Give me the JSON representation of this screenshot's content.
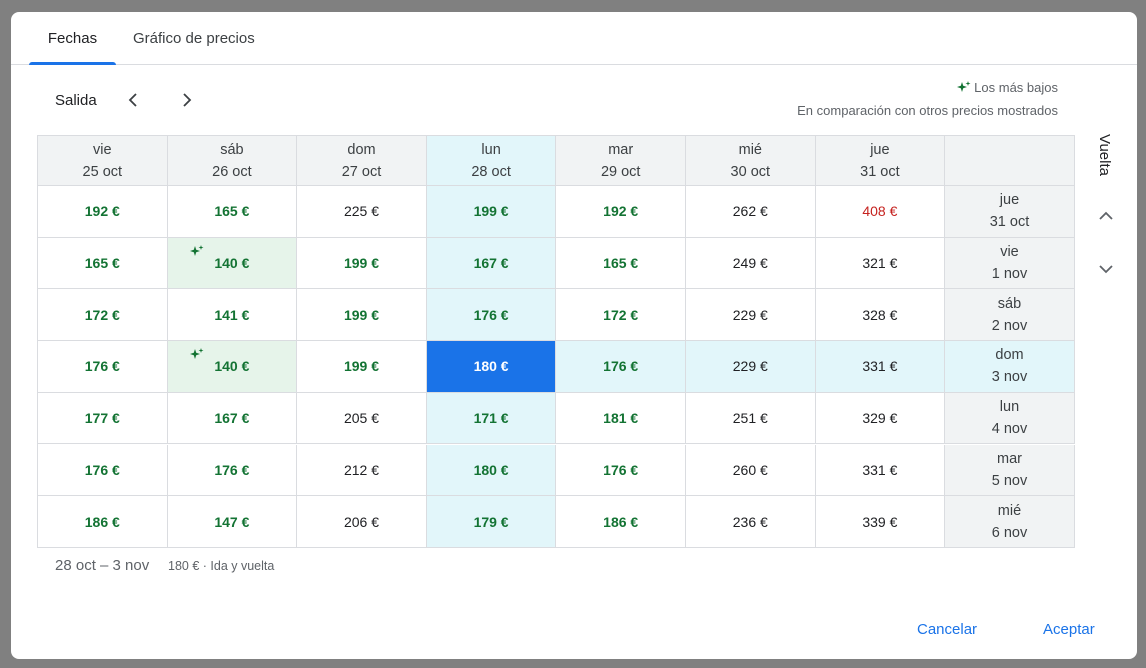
{
  "tabs": [
    {
      "label": "Fechas",
      "active": true
    },
    {
      "label": "Gráfico de precios",
      "active": false
    }
  ],
  "salida_label": "Salida",
  "legend": {
    "label": "Los más bajos",
    "note": "En comparación con otros precios mostrados",
    "icon": "sparkle-icon"
  },
  "vuelta_label": "Vuelta",
  "columns": [
    {
      "day": "vie",
      "date": "25 oct"
    },
    {
      "day": "sáb",
      "date": "26 oct"
    },
    {
      "day": "dom",
      "date": "27 oct"
    },
    {
      "day": "lun",
      "date": "28 oct"
    },
    {
      "day": "mar",
      "date": "29 oct"
    },
    {
      "day": "mié",
      "date": "30 oct"
    },
    {
      "day": "jue",
      "date": "31 oct"
    }
  ],
  "rows": [
    {
      "day": "jue",
      "date": "31 oct",
      "prices": [
        "192 €",
        "165 €",
        "225 €",
        "199 €",
        "192 €",
        "262 €",
        "408 €"
      ]
    },
    {
      "day": "vie",
      "date": "1 nov",
      "prices": [
        "165 €",
        "140 €",
        "199 €",
        "167 €",
        "165 €",
        "249 €",
        "321 €"
      ]
    },
    {
      "day": "sáb",
      "date": "2 nov",
      "prices": [
        "172 €",
        "141 €",
        "199 €",
        "176 €",
        "172 €",
        "229 €",
        "328 €"
      ]
    },
    {
      "day": "dom",
      "date": "3 nov",
      "prices": [
        "176 €",
        "140 €",
        "199 €",
        "180 €",
        "176 €",
        "229 €",
        "331 €"
      ]
    },
    {
      "day": "lun",
      "date": "4 nov",
      "prices": [
        "177 €",
        "167 €",
        "205 €",
        "171 €",
        "181 €",
        "251 €",
        "329 €"
      ]
    },
    {
      "day": "mar",
      "date": "5 nov",
      "prices": [
        "176 €",
        "176 €",
        "212 €",
        "180 €",
        "176 €",
        "260 €",
        "331 €"
      ]
    },
    {
      "day": "mié",
      "date": "6 nov",
      "prices": [
        "186 €",
        "147 €",
        "206 €",
        "179 €",
        "186 €",
        "236 €",
        "339 €"
      ]
    }
  ],
  "selected": {
    "row": 3,
    "col": 3
  },
  "lowest_cells": [
    [
      1,
      1
    ],
    [
      3,
      1
    ]
  ],
  "footer": {
    "dates": "28 oct – 3 nov",
    "price": "180 € · Ida y vuelta"
  },
  "buttons": {
    "cancel": "Cancelar",
    "accept": "Aceptar"
  },
  "colors": {
    "accent": "#1a73e8",
    "low_price": "#137333",
    "high_price": "#c5221f",
    "selection_band": "#e2f6fa",
    "lowest_bg": "#e6f4ea"
  }
}
